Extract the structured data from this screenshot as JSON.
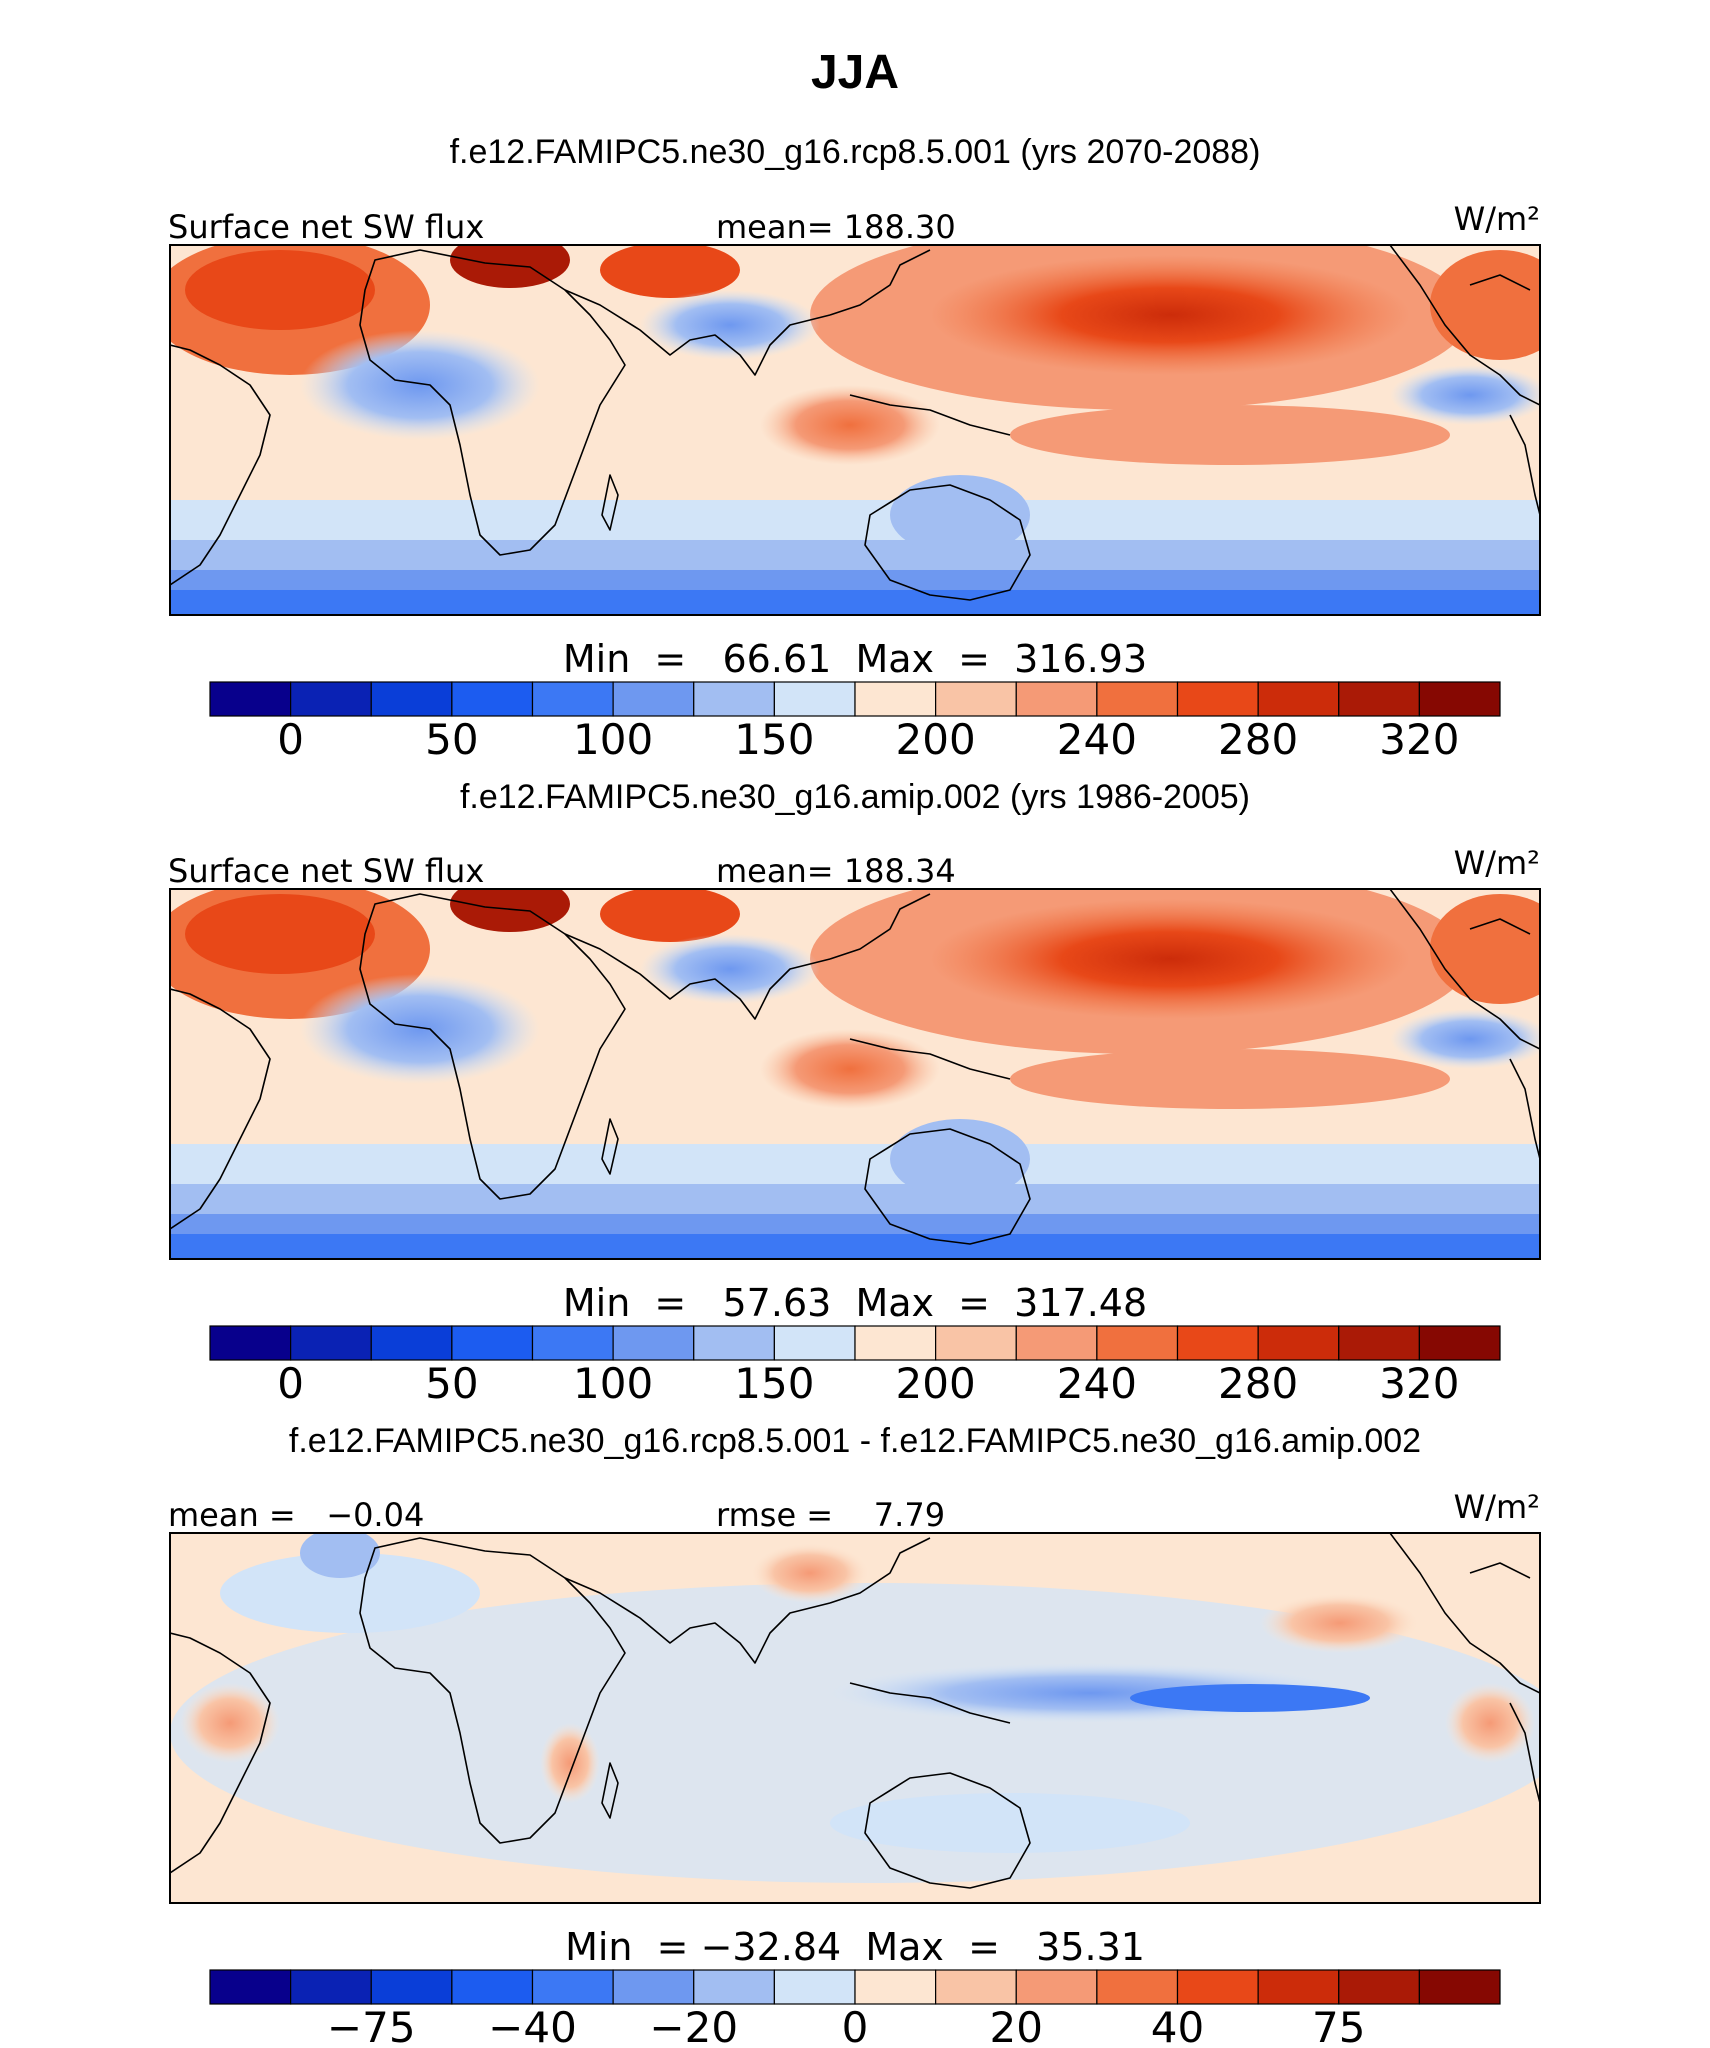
{
  "page_title": "JJA",
  "colormap": {
    "abs": [
      "#08008c",
      "#0a22b4",
      "#0a3ed8",
      "#1c5cf0",
      "#3c78f4",
      "#6e98f0",
      "#a2bef2",
      "#d2e4f8",
      "#fde6d2",
      "#f9c4a6",
      "#f59a76",
      "#f0703e",
      "#e84818",
      "#cc2c0a",
      "#aa1a06",
      "#860802"
    ],
    "diff": [
      "#08008c",
      "#0a22b4",
      "#0a3ed8",
      "#1c5cf0",
      "#3c78f4",
      "#6e98f0",
      "#a2bef2",
      "#d2e4f8",
      "#fde6d2",
      "#f9c4a6",
      "#f59a76",
      "#f0703e",
      "#e84818",
      "#cc2c0a",
      "#aa1a06",
      "#860802"
    ]
  },
  "panels": [
    {
      "id": "panel-1",
      "case_title": "f.e12.FAMIPC5.ne30_g16.rcp8.5.001 (yrs 2070-2088)",
      "left_label": "Surface net SW flux",
      "center_label": "mean= 188.30",
      "units": "W/m²",
      "minmax": "Min  =   66.61  Max  =  316.93",
      "colorbar_ticks": [
        "0",
        "50",
        "100",
        "150",
        "200",
        "240",
        "280",
        "320"
      ],
      "palette": "abs"
    },
    {
      "id": "panel-2",
      "case_title": "f.e12.FAMIPC5.ne30_g16.amip.002 (yrs 1986-2005)",
      "left_label": "Surface net SW flux",
      "center_label": "mean= 188.34",
      "units": "W/m²",
      "minmax": "Min  =   57.63  Max  =  317.48",
      "colorbar_ticks": [
        "0",
        "50",
        "100",
        "150",
        "200",
        "240",
        "280",
        "320"
      ],
      "palette": "abs"
    },
    {
      "id": "panel-3",
      "case_title": "f.e12.FAMIPC5.ne30_g16.rcp8.5.001 - f.e12.FAMIPC5.ne30_g16.amip.002",
      "left_label": "mean =   −0.04",
      "center_label": "rmse =    7.79",
      "units": "W/m²",
      "minmax": "Min  = −32.84  Max  =   35.31",
      "colorbar_ticks": [
        "−75",
        "−40",
        "−20",
        "0",
        "20",
        "40",
        "75"
      ],
      "palette": "diff"
    }
  ]
}
